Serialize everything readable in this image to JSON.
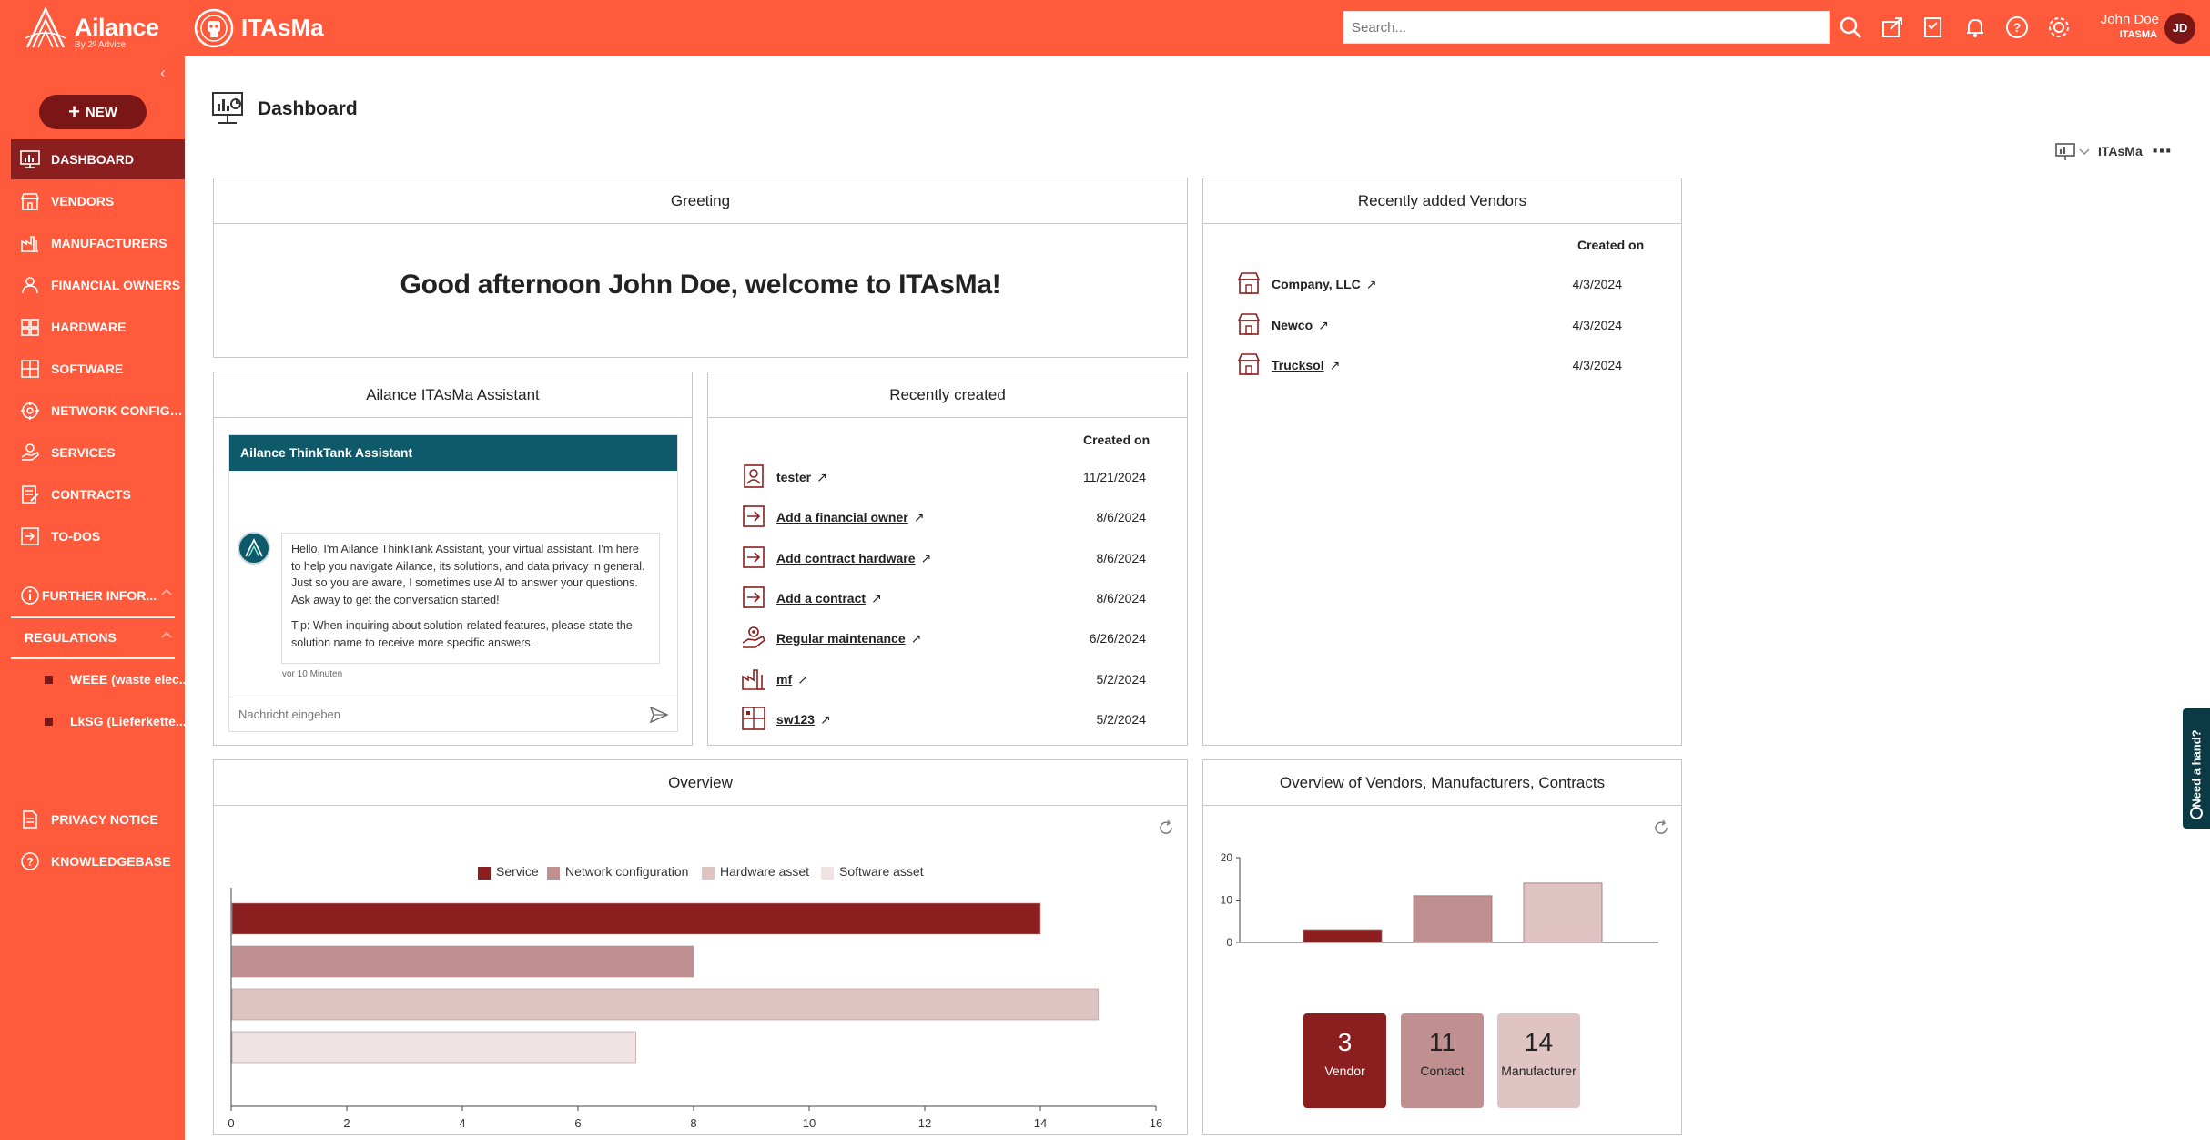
{
  "brand": {
    "name": "Ailance",
    "sub": "By 2ᵈ Advice"
  },
  "app": {
    "name": "ITAsMa"
  },
  "search": {
    "placeholder": "Search..."
  },
  "user": {
    "name": "John Doe",
    "role": "ITASMA",
    "initials": "JD"
  },
  "top_icons": [
    "search-icon",
    "share-icon",
    "task-icon",
    "bell-icon",
    "help-icon",
    "gear-icon"
  ],
  "sidebar": {
    "new_label": "NEW",
    "items": [
      {
        "label": "DASHBOARD",
        "icon": "dashboard-icon",
        "active": true
      },
      {
        "label": "VENDORS",
        "icon": "vendor-icon"
      },
      {
        "label": "MANUFACTURERS",
        "icon": "factory-icon"
      },
      {
        "label": "FINANCIAL OWNERS",
        "icon": "person-icon"
      },
      {
        "label": "HARDWARE",
        "icon": "hardware-icon"
      },
      {
        "label": "SOFTWARE",
        "icon": "software-icon"
      },
      {
        "label": "NETWORK CONFIGU...",
        "icon": "network-icon"
      },
      {
        "label": "SERVICES",
        "icon": "service-icon"
      },
      {
        "label": "CONTRACTS",
        "icon": "contract-icon"
      },
      {
        "label": "TO-DOS",
        "icon": "todo-icon"
      }
    ],
    "further": {
      "label": "FURTHER INFOR...",
      "icon": "info-icon"
    },
    "regulations": {
      "label": "REGULATIONS",
      "items": [
        "WEEE (waste elec...",
        "LkSG (Lieferkette..."
      ]
    },
    "bottom": [
      {
        "label": "PRIVACY NOTICE",
        "icon": "document-icon"
      },
      {
        "label": "KNOWLEDGEBASE",
        "icon": "question-icon"
      }
    ]
  },
  "page": {
    "title": "Dashboard",
    "context_label": "ITAsMa"
  },
  "greeting": {
    "title": "Greeting",
    "text": "Good afternoon John Doe, welcome to ITAsMa!"
  },
  "recent_vendors": {
    "title": "Recently added Vendors",
    "col": "Created on",
    "rows": [
      {
        "name": "Company, LLC",
        "date": "4/3/2024"
      },
      {
        "name": "Newco",
        "date": "4/3/2024"
      },
      {
        "name": "Trucksol",
        "date": "4/3/2024"
      }
    ]
  },
  "assistant": {
    "title": "Ailance ITAsMa Assistant",
    "chat_title": "Ailance ThinkTank Assistant",
    "message_p1": "Hello, I'm Ailance ThinkTank Assistant, your virtual assistant. I'm here to help you navigate Ailance, its solutions, and data privacy in general. Just so you are aware, I sometimes use AI to answer your questions. Ask away to get the conversation started!",
    "message_p2": "Tip: When inquiring about solution-related features, please state the solution name to receive more specific answers.",
    "time": "vor 10 Minuten",
    "input_placeholder": "Nachricht eingeben"
  },
  "recently_created": {
    "title": "Recently created",
    "col": "Created on",
    "rows": [
      {
        "name": "tester",
        "date": "11/21/2024",
        "icon": "person-card-icon"
      },
      {
        "name": "Add a financial owner",
        "date": "8/6/2024",
        "icon": "arrow-in-icon"
      },
      {
        "name": "Add contract hardware",
        "date": "8/6/2024",
        "icon": "arrow-in-icon"
      },
      {
        "name": "Add a contract",
        "date": "8/6/2024",
        "icon": "arrow-in-icon"
      },
      {
        "name": "Regular maintenance",
        "date": "6/26/2024",
        "icon": "service-icon"
      },
      {
        "name": "mf",
        "date": "5/2/2024",
        "icon": "factory-icon"
      },
      {
        "name": "sw123",
        "date": "5/2/2024",
        "icon": "software-icon"
      }
    ]
  },
  "overview": {
    "title": "Overview"
  },
  "overview2": {
    "title": "Overview of Vendors, Manufacturers, Contracts"
  },
  "chart_data": [
    {
      "type": "bar",
      "orientation": "horizontal",
      "title": "Overview",
      "series": [
        {
          "name": "Service",
          "value": 14,
          "color": "#8b1e1e"
        },
        {
          "name": "Network configuration",
          "value": 8,
          "color": "#c09090"
        },
        {
          "name": "Hardware asset",
          "value": 15,
          "color": "#e0c4c4"
        },
        {
          "name": "Software asset",
          "value": 7,
          "color": "#efe3e3"
        }
      ],
      "xlim": [
        0,
        16
      ],
      "xticks": [
        0,
        2,
        4,
        6,
        8,
        10,
        12,
        14,
        16
      ],
      "legend": "top"
    },
    {
      "type": "bar",
      "title": "Overview of Vendors, Manufacturers, Contracts",
      "categories": [
        "Vendor",
        "Contact",
        "Manufacturer"
      ],
      "values": [
        3,
        11,
        14
      ],
      "colors": [
        "#8b1e1e",
        "#c09090",
        "#e0c4c4"
      ],
      "ylim": [
        0,
        20
      ],
      "yticks": [
        0,
        10,
        20
      ]
    }
  ],
  "stats": [
    {
      "value": "3",
      "label": "Vendor"
    },
    {
      "value": "11",
      "label": "Contact"
    },
    {
      "value": "14",
      "label": "Manufacturer"
    }
  ],
  "help": {
    "label": "Need a hand?"
  }
}
